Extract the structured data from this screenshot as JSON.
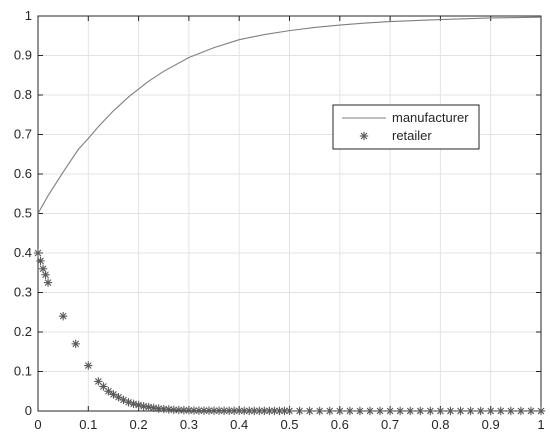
{
  "chart_data": {
    "type": "line",
    "title": "",
    "xlabel": "",
    "ylabel": "",
    "xlim": [
      0,
      1
    ],
    "ylim": [
      0,
      1
    ],
    "xticks": [
      "0",
      "0.1",
      "0.2",
      "0.3",
      "0.4",
      "0.5",
      "0.6",
      "0.7",
      "0.8",
      "0.9",
      "1"
    ],
    "yticks": [
      "0",
      "0.1",
      "0.2",
      "0.3",
      "0.4",
      "0.5",
      "0.6",
      "0.7",
      "0.8",
      "0.9",
      "1"
    ],
    "grid": true,
    "legend_position": "upper-right-center",
    "series": [
      {
        "name": "manufacturer",
        "style": "line",
        "color": "#7f7f7f",
        "x": [
          0,
          0.02,
          0.05,
          0.08,
          0.1,
          0.12,
          0.15,
          0.18,
          0.2,
          0.22,
          0.25,
          0.3,
          0.35,
          0.4,
          0.45,
          0.5,
          0.55,
          0.6,
          0.65,
          0.7,
          0.8,
          0.9,
          1.0
        ],
        "y": [
          0.5,
          0.545,
          0.605,
          0.662,
          0.69,
          0.72,
          0.76,
          0.795,
          0.815,
          0.835,
          0.86,
          0.895,
          0.92,
          0.94,
          0.953,
          0.963,
          0.971,
          0.977,
          0.982,
          0.986,
          0.991,
          0.995,
          0.997
        ]
      },
      {
        "name": "retailer",
        "style": "marker",
        "marker": "asterisk",
        "color": "#595959",
        "x": [
          0,
          0.005,
          0.01,
          0.015,
          0.02,
          0.05,
          0.075,
          0.1,
          0.12,
          0.13,
          0.14,
          0.15,
          0.16,
          0.17,
          0.18,
          0.19,
          0.2,
          0.21,
          0.22,
          0.23,
          0.24,
          0.25,
          0.26,
          0.27,
          0.28,
          0.29,
          0.3,
          0.31,
          0.32,
          0.33,
          0.34,
          0.35,
          0.36,
          0.37,
          0.38,
          0.39,
          0.4,
          0.41,
          0.42,
          0.43,
          0.44,
          0.45,
          0.46,
          0.47,
          0.48,
          0.49,
          0.5,
          0.52,
          0.54,
          0.56,
          0.58,
          0.6,
          0.62,
          0.64,
          0.66,
          0.68,
          0.7,
          0.72,
          0.74,
          0.76,
          0.78,
          0.8,
          0.82,
          0.84,
          0.86,
          0.88,
          0.9,
          0.92,
          0.94,
          0.96,
          0.98,
          1.0
        ],
        "y": [
          0.4,
          0.38,
          0.36,
          0.345,
          0.325,
          0.24,
          0.17,
          0.115,
          0.075,
          0.062,
          0.05,
          0.042,
          0.035,
          0.028,
          0.022,
          0.018,
          0.015,
          0.012,
          0.01,
          0.008,
          0.006,
          0.005,
          0.004,
          0.003,
          0.0025,
          0.002,
          0.0015,
          0.0012,
          0.001,
          0.001,
          0.001,
          0.0008,
          0.0008,
          0.0006,
          0.0006,
          0.0005,
          0.0005,
          0.0004,
          0.0004,
          0.0003,
          0.0003,
          0.0003,
          0.0002,
          0.0002,
          0.0002,
          0.0002,
          0.0002,
          0.0001,
          0.0001,
          0.0001,
          0.0001,
          0.0001,
          0.0001,
          0.0001,
          0.0001,
          0.0001,
          0.0001,
          0.0001,
          0.0001,
          0.0001,
          0.0001,
          0.0001,
          0.0001,
          0.0001,
          0.0001,
          0.0001,
          0.0001,
          0.0001,
          0.0001,
          0.0001,
          0.0001,
          0.0001
        ]
      }
    ]
  }
}
